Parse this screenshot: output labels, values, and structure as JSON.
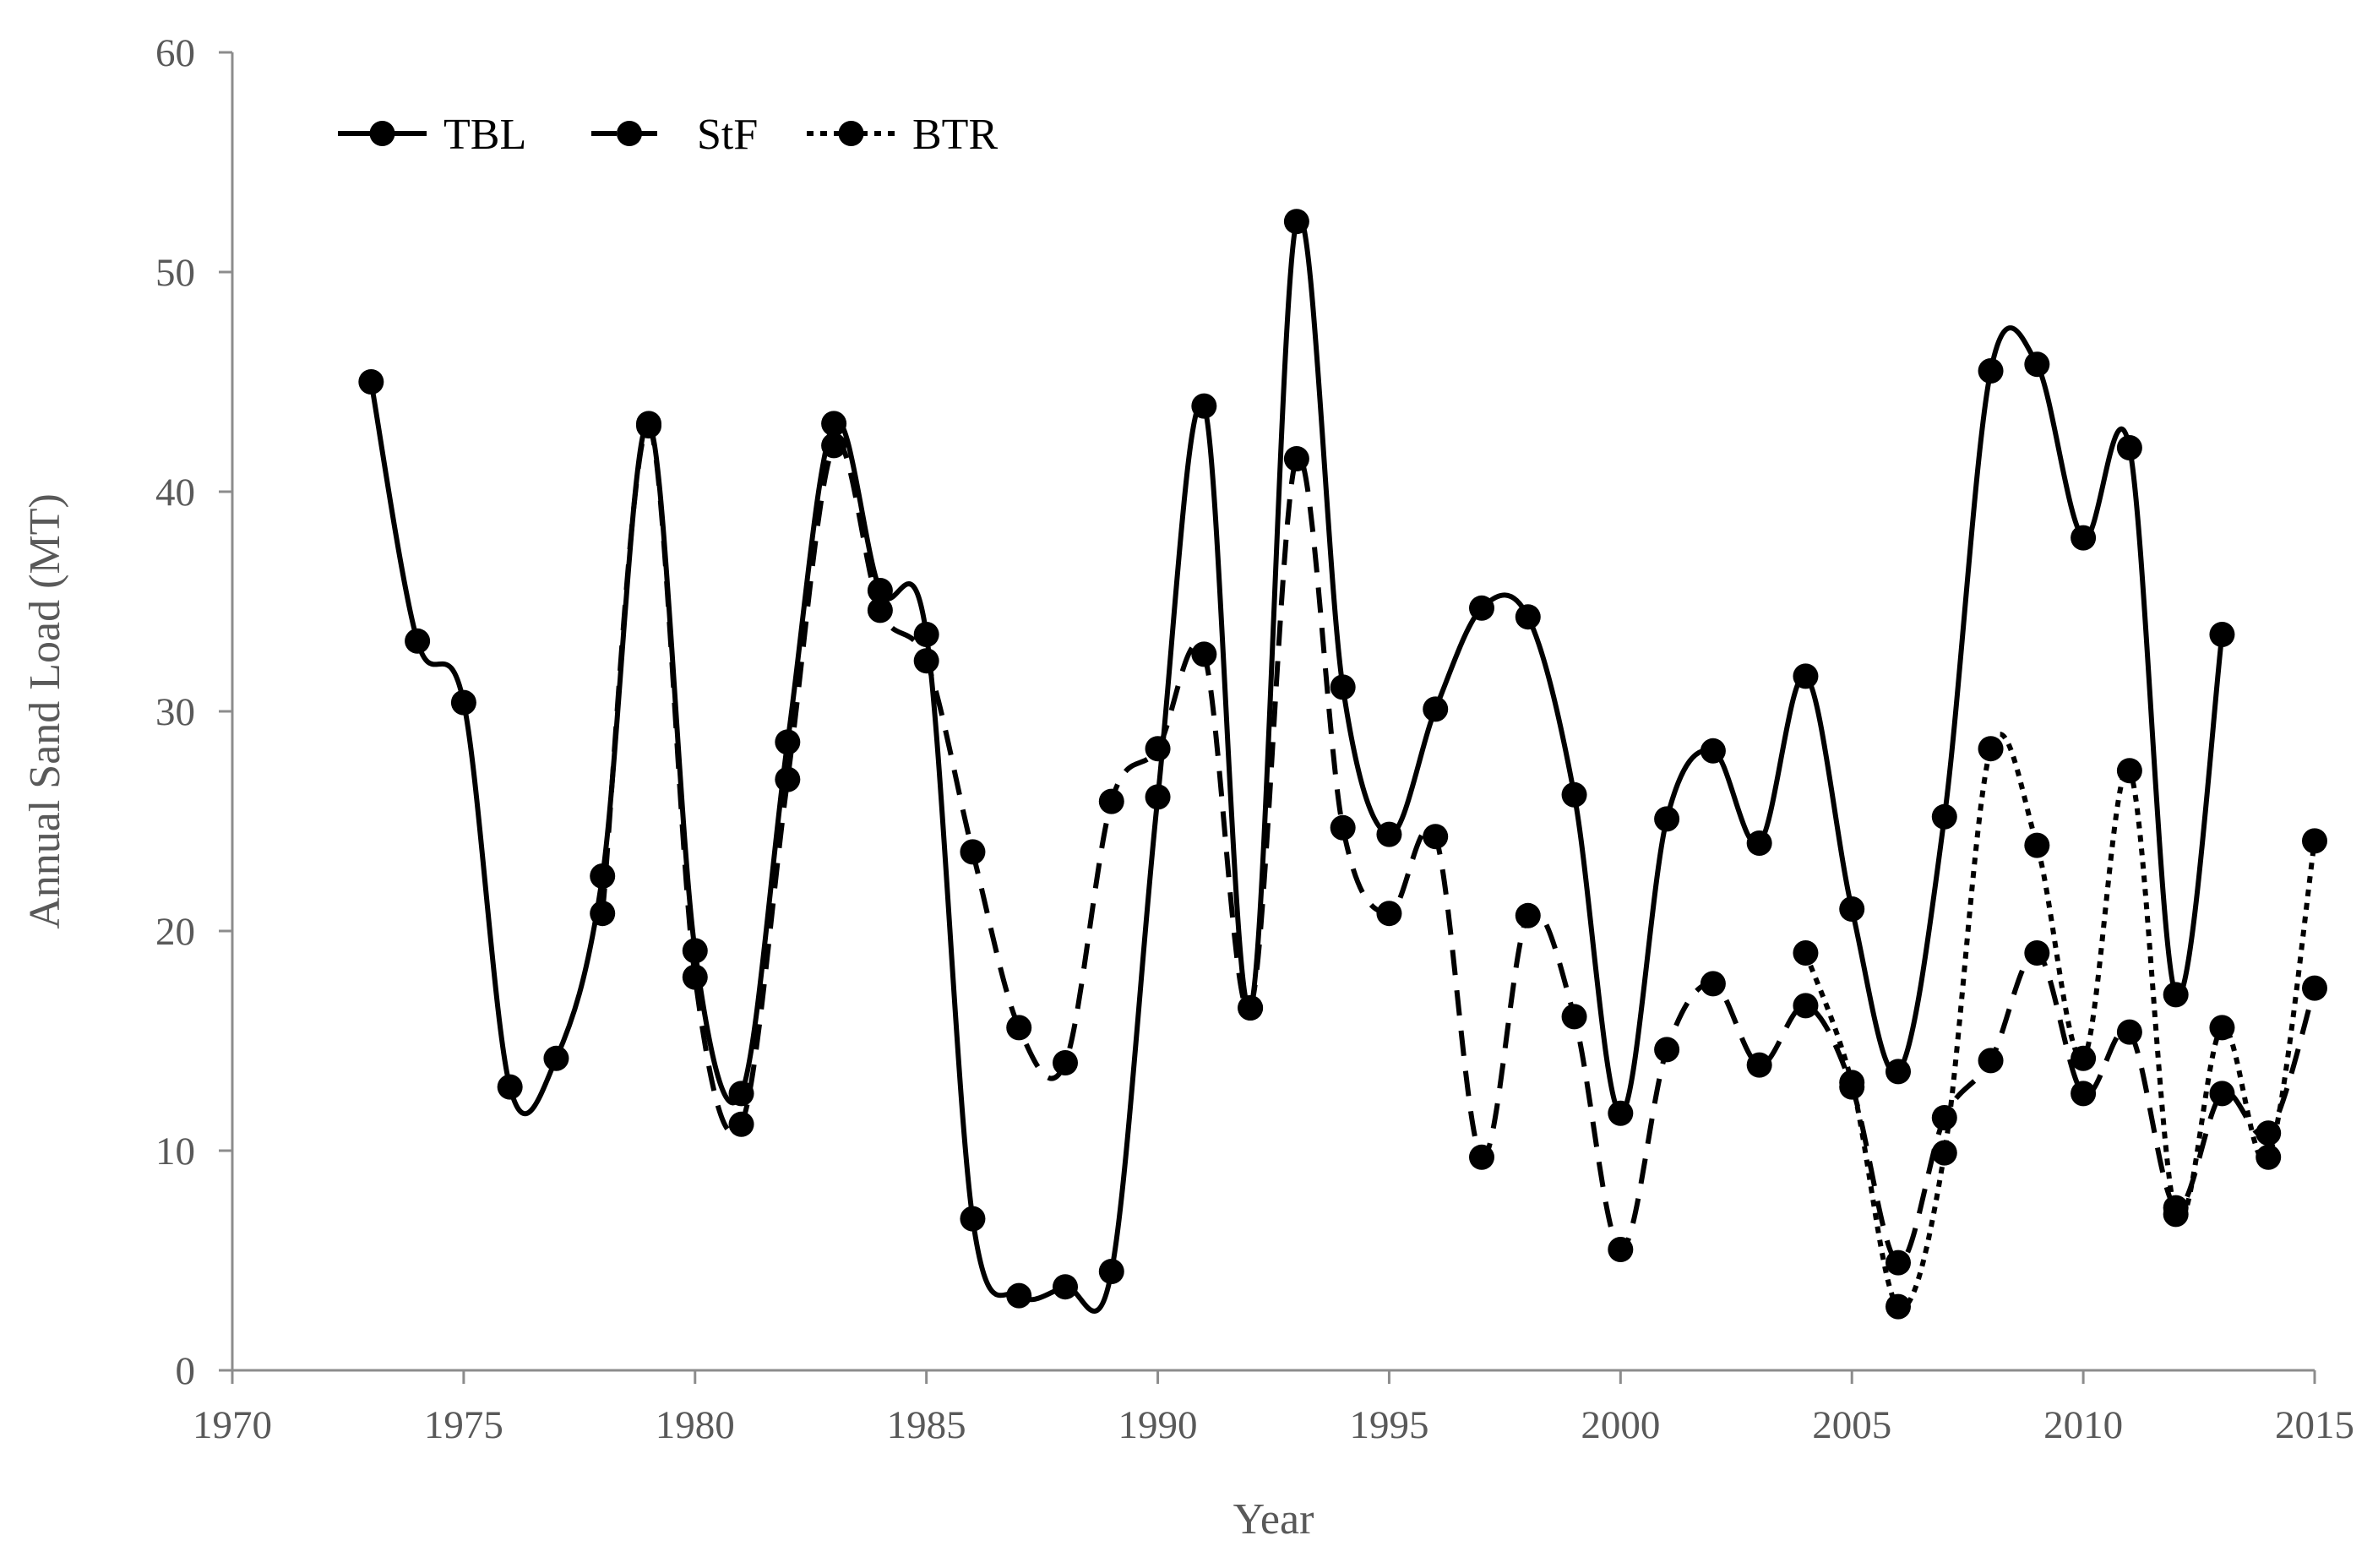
{
  "chart_data": {
    "type": "line",
    "title": "",
    "xlabel": "Year",
    "ylabel": "Annual Sand Load (MT)",
    "xlim": [
      1970,
      2015
    ],
    "ylim": [
      0,
      60
    ],
    "x_ticks": [
      1970,
      1975,
      1980,
      1985,
      1990,
      1995,
      2000,
      2005,
      2010,
      2015
    ],
    "y_ticks": [
      0,
      10,
      20,
      30,
      40,
      50,
      60
    ],
    "grid": false,
    "legend_position": "top-left",
    "smoothed": true,
    "series": [
      {
        "name": "TBL",
        "dash": "solid",
        "color": "#000000",
        "points": [
          [
            1973,
            45.0
          ],
          [
            1974,
            33.2
          ],
          [
            1975,
            30.4
          ],
          [
            1976,
            12.9
          ],
          [
            1977,
            14.2
          ],
          [
            1978,
            22.5
          ],
          [
            1979,
            43.1
          ],
          [
            1980,
            19.1
          ],
          [
            1981,
            12.6
          ],
          [
            1982,
            28.6
          ],
          [
            1983,
            43.1
          ],
          [
            1984,
            35.5
          ],
          [
            1985,
            33.5
          ],
          [
            1986,
            6.9
          ],
          [
            1987,
            3.4
          ],
          [
            1988,
            3.8
          ],
          [
            1989,
            4.5
          ],
          [
            1990,
            26.1
          ],
          [
            1991,
            43.9
          ],
          [
            1992,
            16.5
          ],
          [
            1993,
            52.3
          ],
          [
            1994,
            31.1
          ],
          [
            1995,
            24.4
          ],
          [
            1996,
            30.1
          ],
          [
            1997,
            34.7
          ],
          [
            1998,
            34.3
          ],
          [
            1999,
            26.2
          ],
          [
            2000,
            11.7
          ],
          [
            2001,
            25.1
          ],
          [
            2002,
            28.2
          ],
          [
            2003,
            24.0
          ],
          [
            2004,
            31.6
          ],
          [
            2005,
            21.0
          ],
          [
            2006,
            13.6
          ],
          [
            2007,
            25.2
          ],
          [
            2008,
            45.5
          ],
          [
            2009,
            45.8
          ],
          [
            2010,
            37.9
          ],
          [
            2011,
            42.0
          ],
          [
            2012,
            17.1
          ],
          [
            2013,
            33.5
          ]
        ]
      },
      {
        "name": "StF",
        "dash": "dashed",
        "color": "#000000",
        "points": [
          [
            1978,
            20.8
          ],
          [
            1979,
            43.0
          ],
          [
            1980,
            17.9
          ],
          [
            1981,
            11.2
          ],
          [
            1982,
            26.9
          ],
          [
            1983,
            42.1
          ],
          [
            1984,
            34.6
          ],
          [
            1985,
            32.3
          ],
          [
            1986,
            23.6
          ],
          [
            1987,
            15.6
          ],
          [
            1988,
            14.0
          ],
          [
            1989,
            25.9
          ],
          [
            1990,
            28.3
          ],
          [
            1991,
            32.6
          ],
          [
            1992,
            16.5
          ],
          [
            1993,
            41.5
          ],
          [
            1994,
            24.7
          ],
          [
            1995,
            20.8
          ],
          [
            1996,
            24.3
          ],
          [
            1997,
            9.7
          ],
          [
            1998,
            20.7
          ],
          [
            1999,
            16.1
          ],
          [
            2000,
            5.5
          ],
          [
            2001,
            14.6
          ],
          [
            2002,
            17.6
          ],
          [
            2003,
            13.9
          ],
          [
            2004,
            16.6
          ],
          [
            2005,
            12.9
          ],
          [
            2006,
            4.9
          ],
          [
            2007,
            11.5
          ],
          [
            2008,
            14.1
          ],
          [
            2009,
            19.0
          ],
          [
            2010,
            12.6
          ],
          [
            2011,
            15.4
          ],
          [
            2012,
            7.4
          ],
          [
            2013,
            12.6
          ],
          [
            2014,
            10.8
          ],
          [
            2015,
            17.4
          ]
        ]
      },
      {
        "name": "BTR",
        "dash": "dotted",
        "color": "#000000",
        "points": [
          [
            2004,
            19.0
          ],
          [
            2005,
            13.1
          ],
          [
            2006,
            2.9
          ],
          [
            2007,
            9.9
          ],
          [
            2008,
            28.3
          ],
          [
            2009,
            23.9
          ],
          [
            2010,
            14.2
          ],
          [
            2011,
            27.3
          ],
          [
            2012,
            7.1
          ],
          [
            2013,
            15.6
          ],
          [
            2014,
            9.7
          ],
          [
            2015,
            24.1
          ]
        ]
      }
    ]
  }
}
